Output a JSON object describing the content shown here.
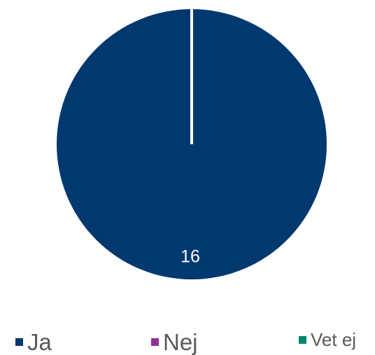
{
  "chart_data": {
    "type": "pie",
    "categories": [
      "Ja",
      "Nej",
      "Vet ej"
    ],
    "values": [
      16,
      0,
      0
    ],
    "data_labels": [
      "16"
    ],
    "colors": [
      "#003870",
      "#8e3393",
      "#00856f"
    ],
    "legend_placement": "bottom"
  }
}
